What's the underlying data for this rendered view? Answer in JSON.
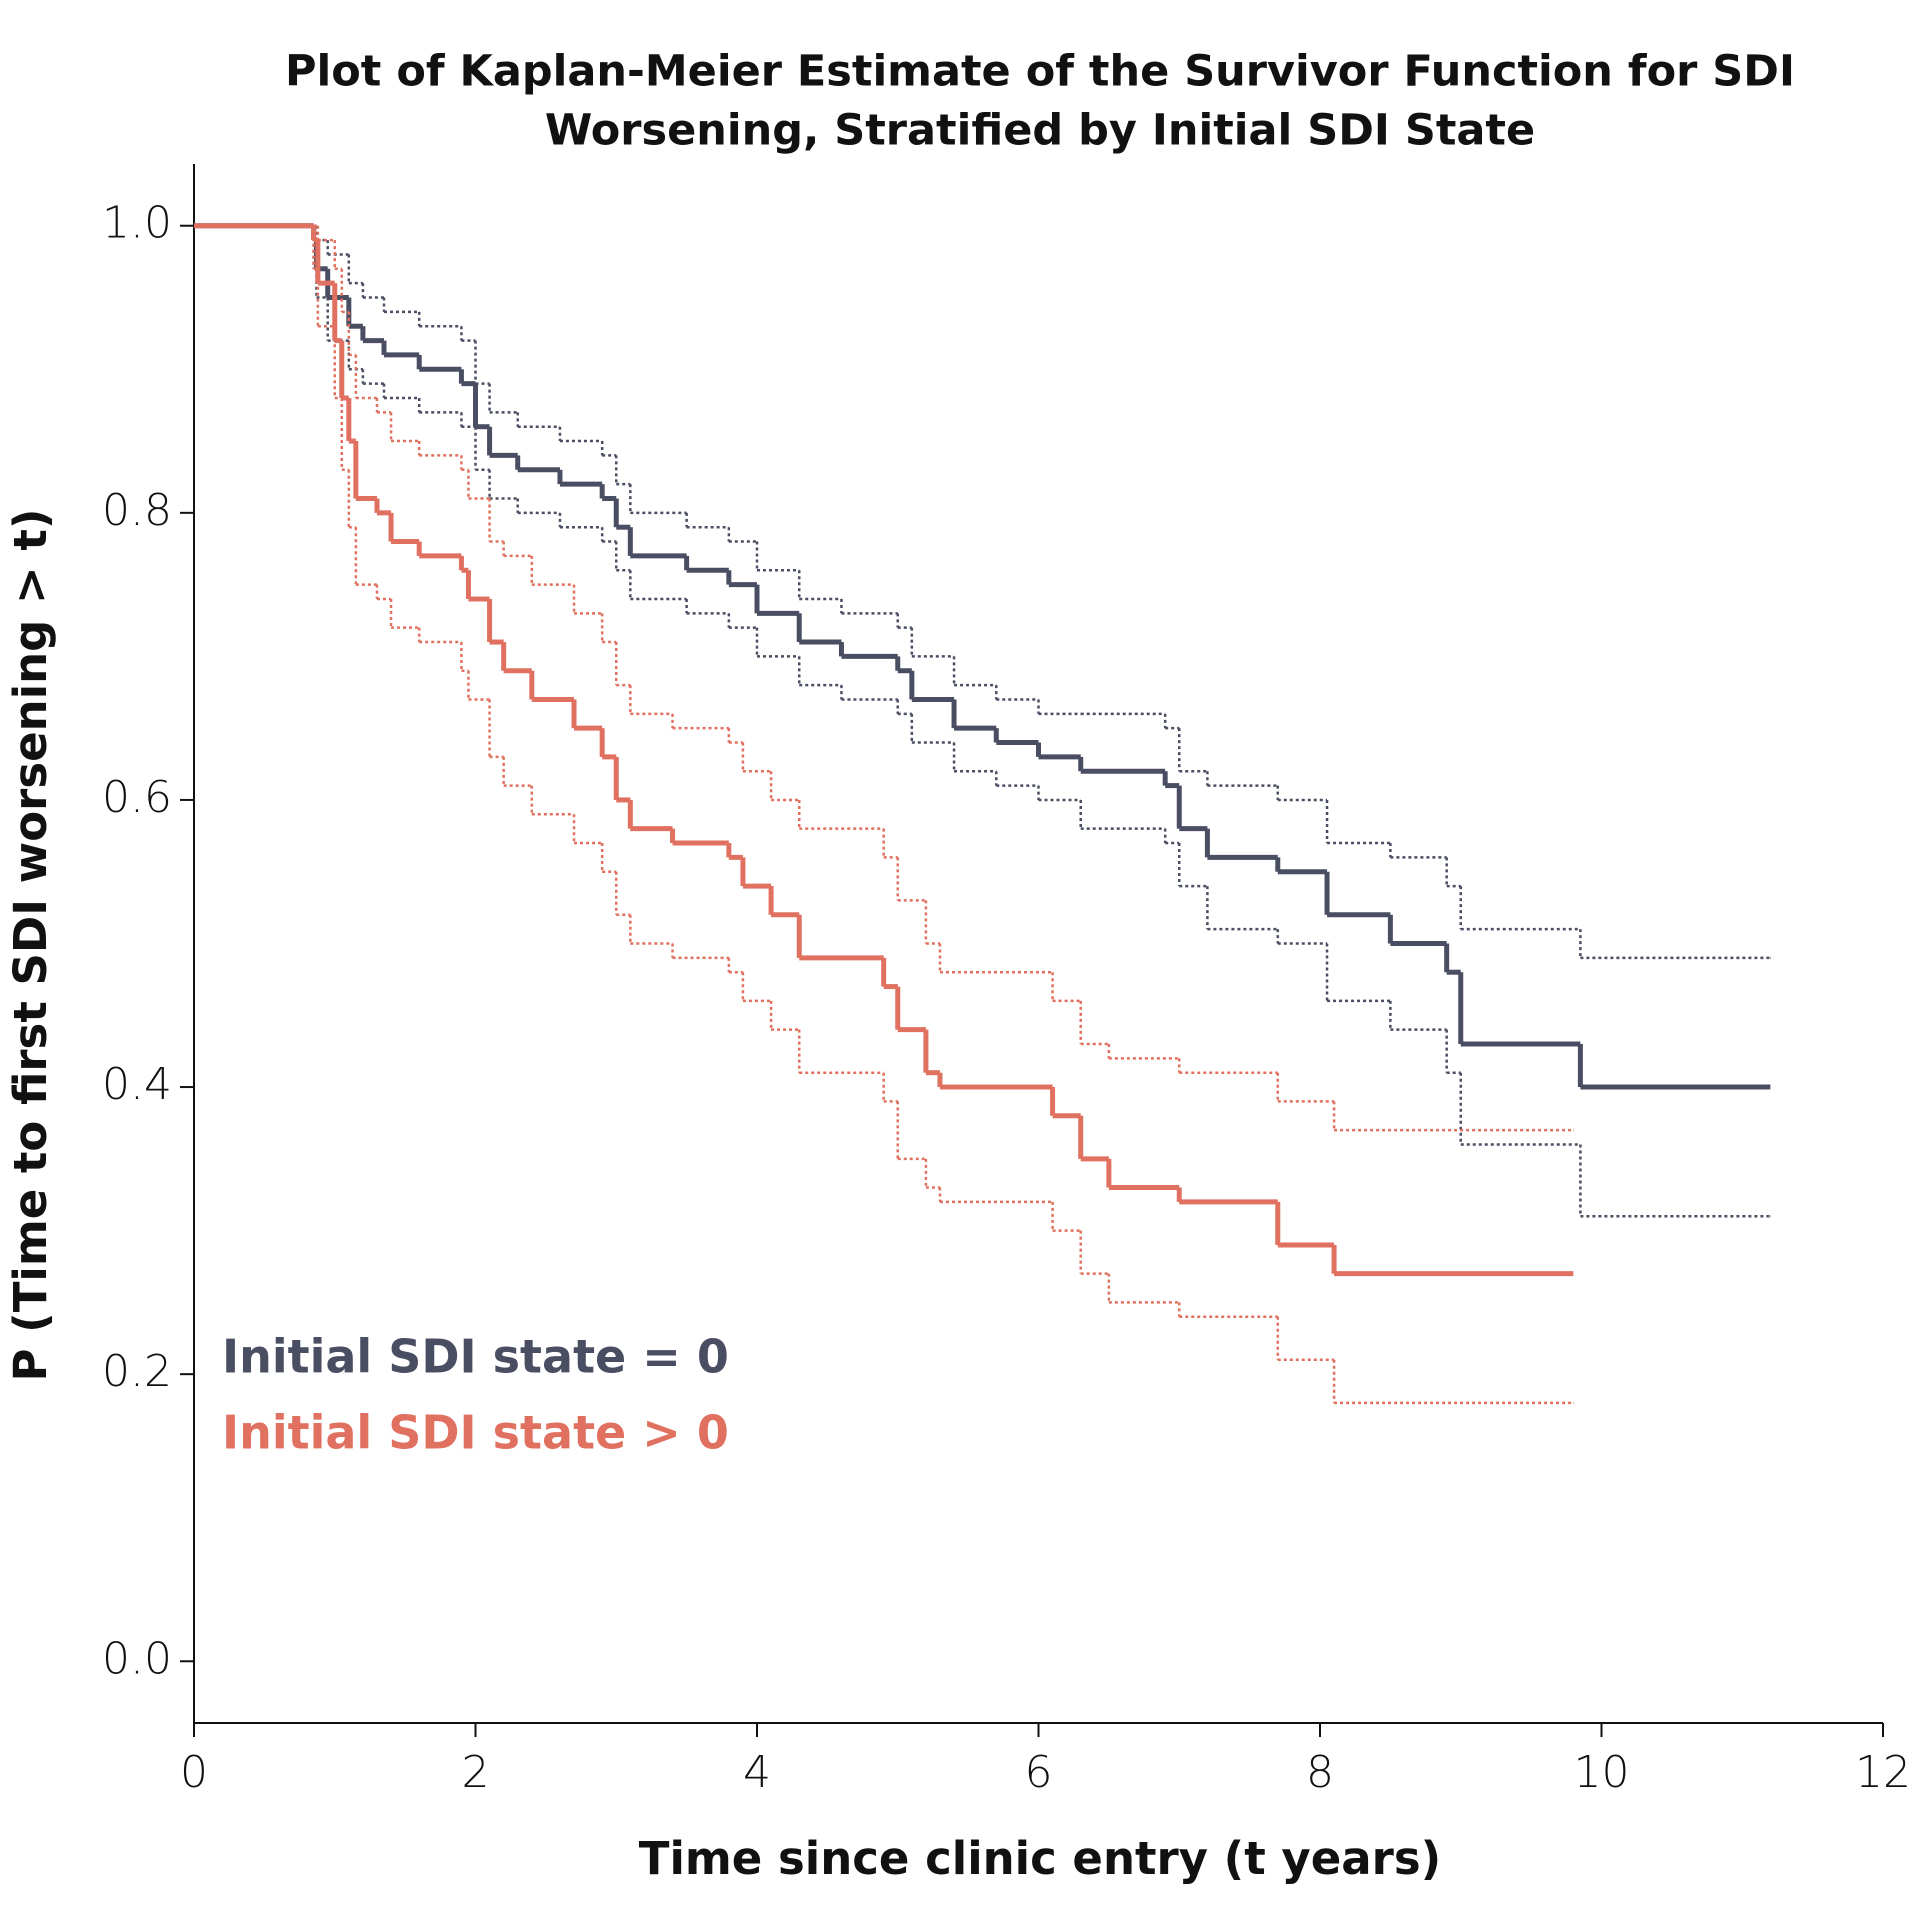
{
  "chart_data": {
    "type": "survival",
    "title": [
      "Plot of Kaplan-Meier Estimate of the Survivor Function for SDI",
      "Worsening, Stratified by Initial SDI State"
    ],
    "x_label": "Time since clinic entry (t years)",
    "y_label": "P (Time to first SDI worsening > t)",
    "xlim": [
      0,
      12
    ],
    "ylim": [
      -0.043,
      1.043
    ],
    "xticks": [
      0,
      2,
      4,
      6,
      8,
      10,
      12
    ],
    "yticks": [
      {
        "value": 0,
        "label": "0.0"
      },
      0.2,
      0.4,
      0.6,
      0.8,
      {
        "value": 1,
        "label": "1.0"
      }
    ],
    "legend": "lower left",
    "series": [
      {
        "name": "Initial SDI state = 0",
        "color": "#4a4e62",
        "x": [
          0,
          0.85,
          0.87,
          0.95,
          1.1,
          1.2,
          1.35,
          1.6,
          1.9,
          2.0,
          2.1,
          2.3,
          2.6,
          2.9,
          3.0,
          3.1,
          3.5,
          3.8,
          4.0,
          4.3,
          4.6,
          5.0,
          5.1,
          5.4,
          5.7,
          6.0,
          6.3,
          6.9,
          7.0,
          7.2,
          7.7,
          8.05,
          8.5,
          8.9,
          9.0,
          9.85,
          11.2
        ],
        "values": [
          1,
          0.99,
          0.97,
          0.95,
          0.93,
          0.92,
          0.91,
          0.9,
          0.89,
          0.86,
          0.84,
          0.83,
          0.82,
          0.81,
          0.79,
          0.77,
          0.76,
          0.75,
          0.73,
          0.71,
          0.7,
          0.69,
          0.67,
          0.65,
          0.64,
          0.63,
          0.62,
          0.61,
          0.58,
          0.56,
          0.55,
          0.52,
          0.5,
          0.48,
          0.43,
          0.4,
          0.4
        ],
        "upper": [
          1,
          1,
          0.99,
          0.98,
          0.96,
          0.95,
          0.94,
          0.93,
          0.92,
          0.89,
          0.87,
          0.86,
          0.85,
          0.84,
          0.82,
          0.8,
          0.79,
          0.78,
          0.76,
          0.74,
          0.73,
          0.72,
          0.7,
          0.68,
          0.67,
          0.66,
          0.66,
          0.65,
          0.62,
          0.61,
          0.6,
          0.57,
          0.56,
          0.54,
          0.51,
          0.49,
          0.49
        ],
        "lower": [
          1,
          0.97,
          0.95,
          0.92,
          0.9,
          0.89,
          0.88,
          0.87,
          0.86,
          0.83,
          0.81,
          0.8,
          0.79,
          0.78,
          0.76,
          0.74,
          0.73,
          0.72,
          0.7,
          0.68,
          0.67,
          0.66,
          0.64,
          0.62,
          0.61,
          0.6,
          0.58,
          0.57,
          0.54,
          0.51,
          0.5,
          0.46,
          0.44,
          0.41,
          0.36,
          0.31,
          0.31
        ]
      },
      {
        "name": "Initial SDI state > 0",
        "color": "#e0705f",
        "x": [
          0,
          0.85,
          0.88,
          1.0,
          1.05,
          1.1,
          1.15,
          1.3,
          1.4,
          1.6,
          1.9,
          1.95,
          2.1,
          2.2,
          2.4,
          2.7,
          2.9,
          3.0,
          3.1,
          3.4,
          3.8,
          3.9,
          4.1,
          4.3,
          4.9,
          5.0,
          5.2,
          5.3,
          6.1,
          6.3,
          6.5,
          7.0,
          7.7,
          8.1,
          9.8
        ],
        "values": [
          1,
          0.99,
          0.96,
          0.92,
          0.88,
          0.85,
          0.81,
          0.8,
          0.78,
          0.77,
          0.76,
          0.74,
          0.71,
          0.69,
          0.67,
          0.65,
          0.63,
          0.6,
          0.58,
          0.57,
          0.56,
          0.54,
          0.52,
          0.49,
          0.47,
          0.44,
          0.41,
          0.4,
          0.38,
          0.35,
          0.33,
          0.32,
          0.29,
          0.27,
          0.27
        ],
        "upper": [
          1,
          1,
          0.99,
          0.97,
          0.94,
          0.91,
          0.88,
          0.87,
          0.85,
          0.84,
          0.83,
          0.81,
          0.78,
          0.77,
          0.75,
          0.73,
          0.71,
          0.68,
          0.66,
          0.65,
          0.64,
          0.62,
          0.6,
          0.58,
          0.56,
          0.53,
          0.5,
          0.48,
          0.46,
          0.43,
          0.42,
          0.41,
          0.39,
          0.37,
          0.37
        ],
        "lower": [
          1,
          0.97,
          0.93,
          0.88,
          0.83,
          0.79,
          0.75,
          0.74,
          0.72,
          0.71,
          0.69,
          0.67,
          0.63,
          0.61,
          0.59,
          0.57,
          0.55,
          0.52,
          0.5,
          0.49,
          0.48,
          0.46,
          0.44,
          0.41,
          0.39,
          0.35,
          0.33,
          0.32,
          0.3,
          0.27,
          0.25,
          0.24,
          0.21,
          0.18,
          0.18
        ]
      }
    ]
  }
}
